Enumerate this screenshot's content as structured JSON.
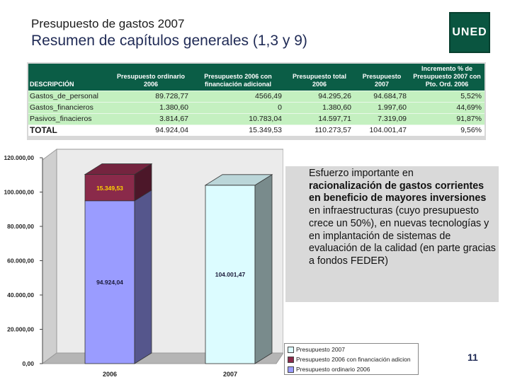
{
  "header": {
    "subtitle": "Presupuesto de gastos 2007",
    "title": "Resumen de capítulos generales (1,3 y 9)",
    "logo_text": "UNED"
  },
  "table": {
    "headers": [
      "DESCRIPCIÓN",
      "Presupuesto ordinario 2006",
      "Presupuesto 2006 con financiación adicional",
      "Presupuesto total 2006",
      "Presupuesto 2007",
      "Incremento % de Presupuesto 2007 con Pto. Ord. 2006"
    ],
    "rows": [
      [
        "Gastos_de_personal",
        "89.728,77",
        "4566,49",
        "94.295,26",
        "94.684,78",
        "5,52%"
      ],
      [
        "Gastos_financieros",
        "1.380,60",
        "0",
        "1.380,60",
        "1.997,60",
        "44,69%"
      ],
      [
        "Pasivos_finacieros",
        "3.814,67",
        "10.783,04",
        "14.597,71",
        "7.319,09",
        "91,87%"
      ]
    ],
    "total": [
      "TOTAL",
      "94.924,04",
      "15.349,53",
      "110.273,57",
      "104.001,47",
      "9,56%"
    ]
  },
  "chart_data": {
    "type": "bar",
    "stacked": true,
    "style": "3d",
    "categories": [
      "2006",
      "2007"
    ],
    "series": [
      {
        "name": "Presupuesto ordinario 2006",
        "color": "#9a9cff",
        "values": [
          94924.04,
          0
        ],
        "labels": [
          "94.924,04",
          ""
        ]
      },
      {
        "name": "Presupuesto 2006 con financiación adicion",
        "color": "#8a2a4a",
        "values": [
          15349.53,
          0
        ],
        "labels": [
          "15.349,53",
          ""
        ]
      },
      {
        "name": "Presupuesto 2007",
        "color": "#dcfcff",
        "values": [
          0,
          104001.47
        ],
        "labels": [
          "",
          "104.001,47"
        ]
      }
    ],
    "ylim": [
      0,
      120000
    ],
    "yticks": [
      0,
      20000,
      40000,
      60000,
      80000,
      100000,
      120000
    ],
    "ytick_labels": [
      "0,00",
      "20.000,00",
      "40.000,00",
      "60.000,00",
      "80.000,00",
      "100.000,00",
      "120.000,00"
    ],
    "legend": "bottom-right",
    "grid": false
  },
  "note": {
    "intro": "Esfuerzo importante en",
    "bold": "racionalización de gastos corrientes en beneficio de mayores inversiones",
    "rest": " en infraestructuras (cuyo presupuesto crece un 50%), en nuevas tecnologías  y en implantación de sistemas de evaluación de la calidad (en parte gracias a fondos FEDER)"
  },
  "legend": {
    "items": [
      {
        "label": "Presupuesto 2007",
        "color": "#dcfcff"
      },
      {
        "label": "Presupuesto 2006 con financiación adicion",
        "color": "#8a2a4a"
      },
      {
        "label": "Presupuesto ordinario 2006",
        "color": "#9a9cff"
      }
    ]
  },
  "footer": {
    "page_number": "11"
  }
}
